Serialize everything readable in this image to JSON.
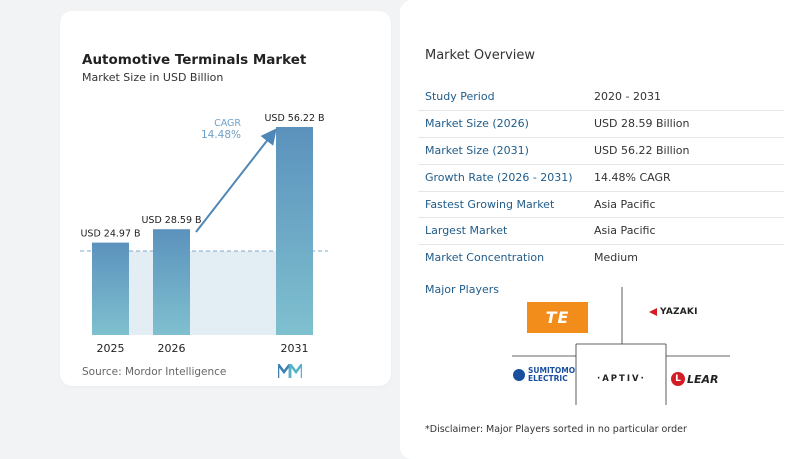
{
  "chart_data": {
    "type": "bar",
    "title": "Automotive Terminals Market",
    "subtitle": "Market Size in USD Billion",
    "categories": [
      "2025",
      "2026",
      "2031"
    ],
    "values": [
      24.97,
      28.59,
      56.22
    ],
    "value_labels": [
      "USD 24.97 B",
      "USD 28.59 B",
      "USD 56.22 B"
    ],
    "cagr_label": "CAGR",
    "cagr_value": "14.48%",
    "xlabel": "",
    "ylabel": "",
    "grid": false
  },
  "source": "Source:  Mordor Intelligence",
  "overview": {
    "title": "Market Overview",
    "rows": [
      {
        "label": "Study Period",
        "value": "2020 - 2031"
      },
      {
        "label": "Market Size (2026)",
        "value": "USD 28.59 Billion"
      },
      {
        "label": "Market Size (2031)",
        "value": "USD 56.22 Billion"
      },
      {
        "label": "Growth Rate (2026 - 2031)",
        "value": "14.48% CAGR"
      },
      {
        "label": "Fastest Growing Market",
        "value": "Asia Pacific"
      },
      {
        "label": "Largest Market",
        "value": "Asia Pacific"
      },
      {
        "label": "Market Concentration",
        "value": "Medium"
      }
    ]
  },
  "players": {
    "title": "Major Players",
    "logos": {
      "te": "TE",
      "yazaki": "YAZAKI",
      "sumitomo_line1": "SUMITOMO",
      "sumitomo_line2": "ELECTRIC",
      "aptiv": "·APTIV·",
      "lear": "LEAR",
      "lear_mark": "L"
    }
  },
  "disclaimer": "*Disclaimer: Major Players sorted in no particular order",
  "colors": {
    "bar_top": "#5b92bd",
    "bar_bottom": "#7fc0cf",
    "arrow": "#4f88b8",
    "label_blue": "#1f5c8a",
    "te_orange": "#f28c1a",
    "accent_red": "#d41c24"
  }
}
